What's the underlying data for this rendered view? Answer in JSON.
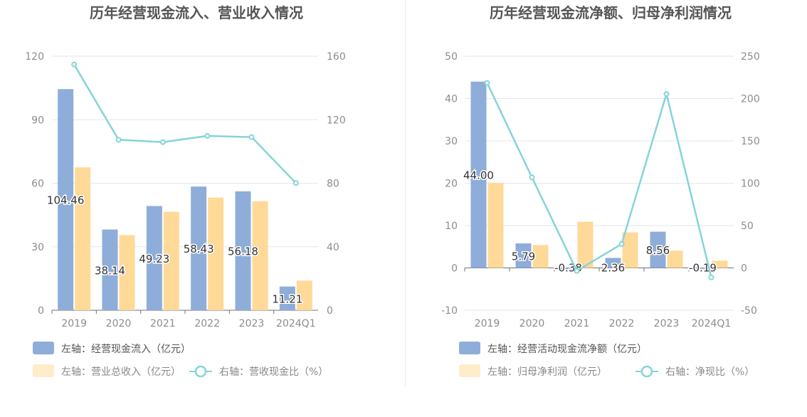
{
  "colors": {
    "bar_left": "#8eadd9",
    "bar_right": "#ffd998",
    "line": "#86d4d8",
    "grid": "#e3e6ef",
    "axis_text": "#8c8c8c",
    "title": "#555555",
    "legend_text": "#888888"
  },
  "chart_data": [
    {
      "type": "bar",
      "title": "历年经营现金流入、营业收入情况",
      "categories": [
        "2019",
        "2020",
        "2021",
        "2022",
        "2023",
        "2024Q1"
      ],
      "left_axis": {
        "ticks": [
          "0",
          "30",
          "60",
          "90",
          "120"
        ],
        "ylim": [
          0,
          120
        ]
      },
      "right_axis": {
        "ticks": [
          "0",
          "40",
          "80",
          "120",
          "160"
        ],
        "ylim": [
          0,
          160
        ]
      },
      "series": [
        {
          "name": "左轴：经营现金流入（亿元）",
          "kind": "bar",
          "axis": "left",
          "values": [
            104.46,
            38.14,
            49.23,
            58.43,
            56.18,
            11.21
          ],
          "labels": [
            "104.46",
            "38.14",
            "49.23",
            "58.43",
            "56.18",
            "11.21"
          ]
        },
        {
          "name": "左轴：营业总收入（亿元）",
          "kind": "bar",
          "axis": "left",
          "values": [
            67.5,
            35.5,
            46.5,
            53.2,
            51.5,
            14.0
          ]
        },
        {
          "name": "右轴：营收现金比（%）",
          "kind": "line",
          "axis": "right",
          "values": [
            154.8,
            107.4,
            105.9,
            109.8,
            109.1,
            80.1
          ]
        }
      ],
      "legend_rows": [
        [
          0
        ],
        [
          1,
          2
        ]
      ]
    },
    {
      "type": "bar",
      "title": "历年经营现金流净额、归母净利润情况",
      "categories": [
        "2019",
        "2020",
        "2021",
        "2022",
        "2023",
        "2024Q1"
      ],
      "left_axis": {
        "ticks": [
          "-10",
          "0",
          "10",
          "20",
          "30",
          "40",
          "50"
        ],
        "ylim": [
          -10,
          50
        ]
      },
      "right_axis": {
        "ticks": [
          "-50",
          "0",
          "50",
          "100",
          "150",
          "200",
          "250"
        ],
        "ylim": [
          -50,
          250
        ]
      },
      "series": [
        {
          "name": "左轴：经营活动现金流净额（亿元）",
          "kind": "bar",
          "axis": "left",
          "values": [
            44.0,
            5.79,
            -0.38,
            2.36,
            8.56,
            -0.19
          ],
          "labels": [
            "44.00",
            "5.79",
            "-0.38",
            "2.36",
            "8.56",
            "-0.19"
          ]
        },
        {
          "name": "左轴：归母净利润（亿元）",
          "kind": "bar",
          "axis": "left",
          "values": [
            20.1,
            5.4,
            10.9,
            8.4,
            4.1,
            1.7
          ]
        },
        {
          "name": "右轴：净现比（%）",
          "kind": "line",
          "axis": "right",
          "values": [
            218.5,
            106.9,
            -3.5,
            28.2,
            205.4,
            -11.2
          ]
        }
      ],
      "legend_rows": [
        [
          0
        ],
        [
          1,
          2
        ]
      ]
    }
  ]
}
